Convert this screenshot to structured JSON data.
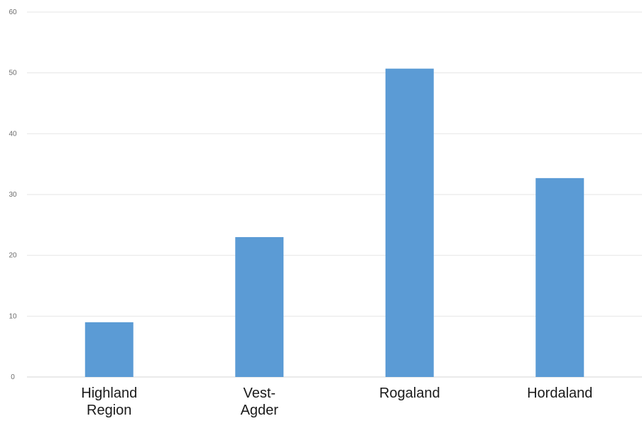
{
  "chart_data": {
    "type": "bar",
    "categories": [
      "Highland Region",
      "Vest-Agder",
      "Rogaland",
      "Hordaland"
    ],
    "category_label_lines": [
      [
        "Highland",
        "Region"
      ],
      [
        "Vest-",
        "Agder"
      ],
      [
        "Rogaland"
      ],
      [
        "Hordaland"
      ]
    ],
    "values": [
      9,
      23,
      50.7,
      32.7
    ],
    "ylim": [
      0,
      60
    ],
    "yticks": [
      0,
      10,
      20,
      30,
      40,
      50,
      60
    ],
    "grid": true,
    "bar_color": "#5b9bd5",
    "title": "",
    "xlabel": "",
    "ylabel": ""
  }
}
